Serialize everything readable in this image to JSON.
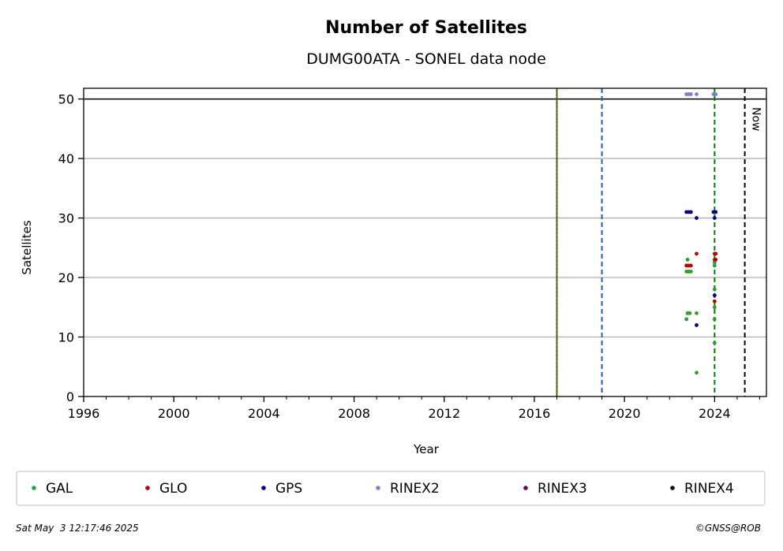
{
  "chart_data": {
    "type": "scatter",
    "title": "Number of Satellites",
    "subtitle": "DUMG00ATA - SONEL data node",
    "xlabel": "Year",
    "ylabel": "Satellites",
    "xlim": [
      1996,
      2026.3
    ],
    "ylim": [
      0,
      51.8
    ],
    "x_ticks": [
      "1996",
      "2000",
      "2004",
      "2008",
      "2012",
      "2016",
      "2020",
      "2024"
    ],
    "x_tick_values": [
      1996,
      2000,
      2004,
      2008,
      2012,
      2016,
      2020,
      2024
    ],
    "y_ticks": [
      "0",
      "10",
      "20",
      "30",
      "40",
      "50"
    ],
    "y_tick_values": [
      0,
      10,
      20,
      30,
      40,
      50
    ],
    "grid": "horizontal",
    "reference_line_y": 50,
    "vertical_lines": [
      {
        "x": 2017.0,
        "color": "#008000",
        "style": "solid"
      },
      {
        "x": 2017.0,
        "color": "#d62728",
        "style": "dotted"
      },
      {
        "x": 2019.0,
        "color": "#1f5fa8",
        "style": "dashed"
      },
      {
        "x": 2024.0,
        "color": "#008000",
        "style": "dashed"
      },
      {
        "x": 2025.34,
        "color": "#000000",
        "style": "dashed",
        "label": "Now"
      }
    ],
    "series": [
      {
        "name": "GAL",
        "color": "#2ca02c",
        "points": [
          [
            2022.75,
            21
          ],
          [
            2022.8,
            23
          ],
          [
            2022.85,
            21
          ],
          [
            2022.95,
            21
          ],
          [
            2022.75,
            13
          ],
          [
            2022.8,
            14
          ],
          [
            2022.9,
            14
          ],
          [
            2023.2,
            14
          ],
          [
            2023.2,
            4
          ],
          [
            2024.0,
            22
          ],
          [
            2024.0,
            22.5
          ],
          [
            2024.0,
            18
          ],
          [
            2024.0,
            15
          ],
          [
            2024.0,
            13
          ],
          [
            2024.0,
            9
          ]
        ]
      },
      {
        "name": "GLO",
        "color": "#c00000",
        "points": [
          [
            2022.75,
            22
          ],
          [
            2022.85,
            22
          ],
          [
            2022.95,
            22
          ],
          [
            2023.2,
            24
          ],
          [
            2024.0,
            24
          ],
          [
            2024.05,
            24
          ],
          [
            2024.0,
            23
          ],
          [
            2024.05,
            23
          ],
          [
            2024.0,
            16
          ]
        ]
      },
      {
        "name": "GPS",
        "color": "#00008b",
        "points": [
          [
            2022.75,
            31
          ],
          [
            2022.85,
            31
          ],
          [
            2022.95,
            31
          ],
          [
            2023.2,
            30
          ],
          [
            2023.2,
            12
          ],
          [
            2023.95,
            31
          ],
          [
            2024.0,
            31
          ],
          [
            2024.05,
            31
          ],
          [
            2024.0,
            30
          ],
          [
            2024.0,
            17
          ]
        ]
      },
      {
        "name": "RINEX2",
        "color": "#8080c0",
        "points": [
          [
            2022.75,
            50.8
          ],
          [
            2022.85,
            50.8
          ],
          [
            2022.95,
            50.8
          ],
          [
            2023.2,
            50.8
          ],
          [
            2023.95,
            50.8
          ],
          [
            2024.0,
            50.8
          ],
          [
            2024.05,
            50.8
          ]
        ]
      },
      {
        "name": "RINEX3",
        "color": "#6a006a",
        "points": []
      },
      {
        "name": "RINEX4",
        "color": "#1a0a1a",
        "points": []
      }
    ],
    "legend_placement": "bottom"
  },
  "footer": {
    "timestamp": "Sat May  3 12:17:46 2025",
    "credit": "©GNSS@ROB"
  }
}
